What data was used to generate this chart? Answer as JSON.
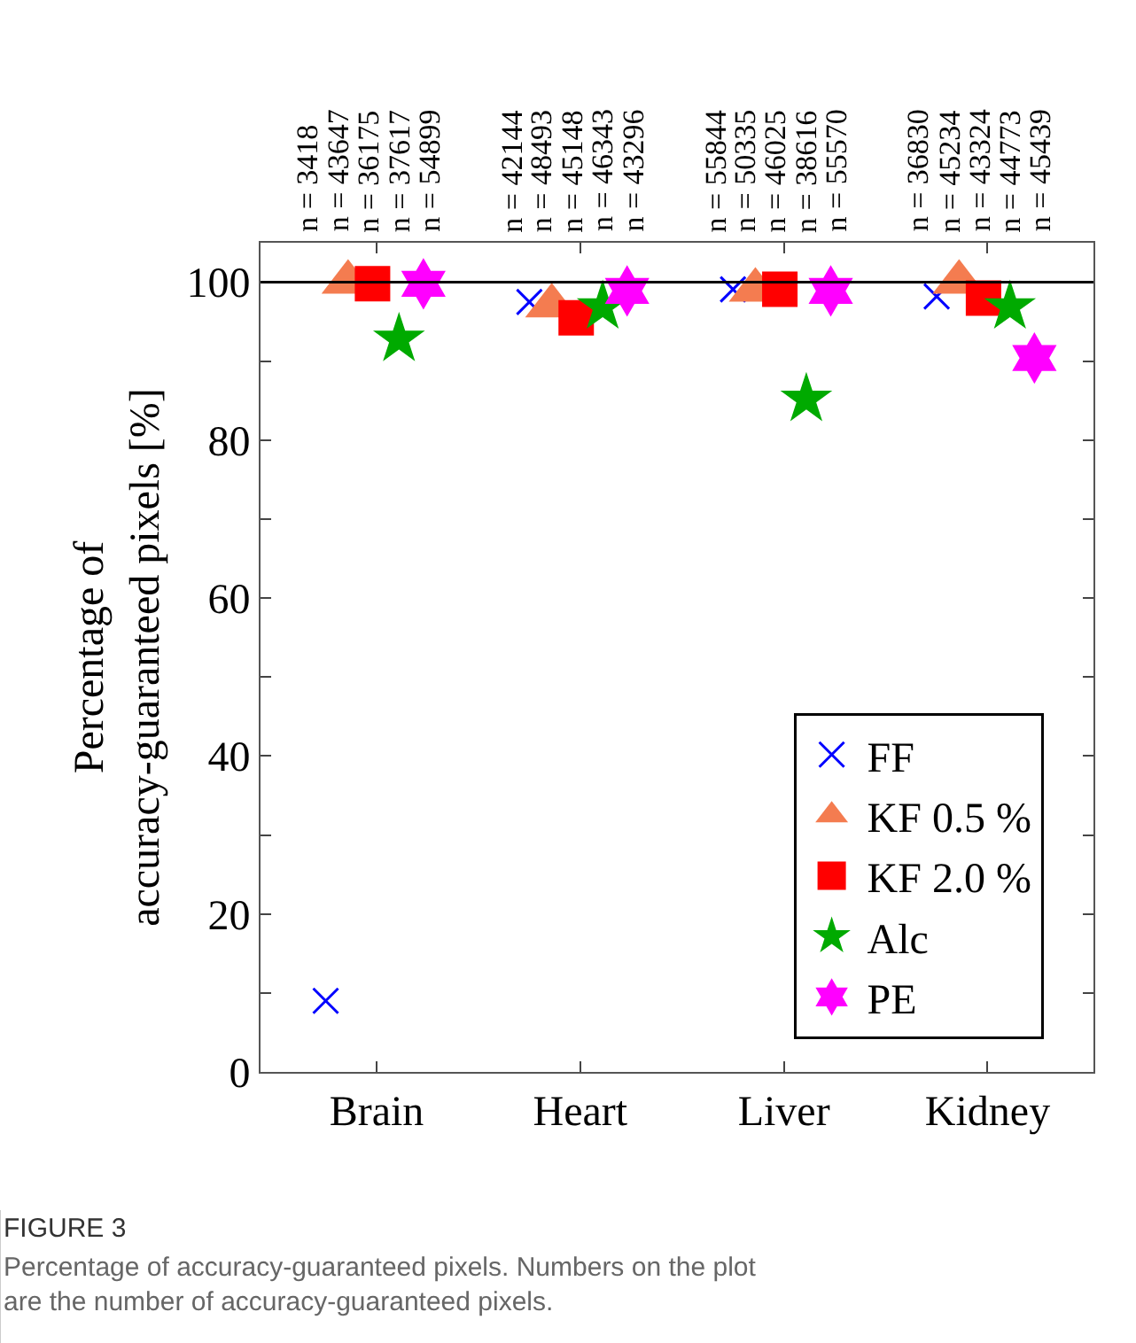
{
  "chart_data": {
    "type": "scatter",
    "title": "FIGURE 3",
    "subtitle": "Percentage of accuracy-guaranteed pixels. Numbers on the plot are the number of accuracy-guaranteed pixels.",
    "ylabel": "Percentage of\naccuracy-guaranteed pixels [%]",
    "categories": [
      "Brain",
      "Heart",
      "Liver",
      "Kidney"
    ],
    "series": [
      {
        "name": "FF",
        "color": "#0000ff",
        "marker": "cross",
        "values": [
          9,
          97.5,
          99.1,
          98.2
        ]
      },
      {
        "name": "KF 0.5 %",
        "color": "#f47c50",
        "marker": "triangle",
        "values": [
          100,
          97,
          99,
          100
        ]
      },
      {
        "name": "KF 2.0 %",
        "color": "#ff0000",
        "marker": "square",
        "values": [
          99.8,
          95.5,
          99.1,
          98
        ]
      },
      {
        "name": "Alc",
        "color": "#00aa00",
        "marker": "star",
        "values": [
          92.8,
          96.9,
          85.2,
          96.9
        ]
      },
      {
        "name": "PE",
        "color": "#ff00ff",
        "values": [
          99.8,
          98.9,
          98.9,
          90.4
        ]
      }
    ],
    "annotations": [
      "n = 3418",
      "n = 43647",
      "n = 36175",
      "n = 37617",
      "n = 54899",
      "n = 42144",
      "n = 48493",
      "n = 45148",
      "n = 46343",
      "n = 43296",
      "n = 55844",
      "n = 50335",
      "n = 46025",
      "n = 38616",
      "n = 55570",
      "n = 36830",
      "n = 45234",
      "n = 43324",
      "n = 44773",
      "n = 45439"
    ],
    "ref_lines": [
      {
        "axis": "y",
        "value": 100,
        "color": "#000000"
      }
    ],
    "ylim": [
      0,
      105
    ],
    "yticks": [
      0,
      {
        "value": 10,
        "label": null
      },
      20,
      {
        "value": 30,
        "label": null
      },
      40,
      {
        "value": 50,
        "label": null
      },
      60,
      {
        "value": 70,
        "label": null
      },
      80,
      {
        "value": 90,
        "label": null
      },
      100
    ],
    "legend": "bottom right"
  }
}
